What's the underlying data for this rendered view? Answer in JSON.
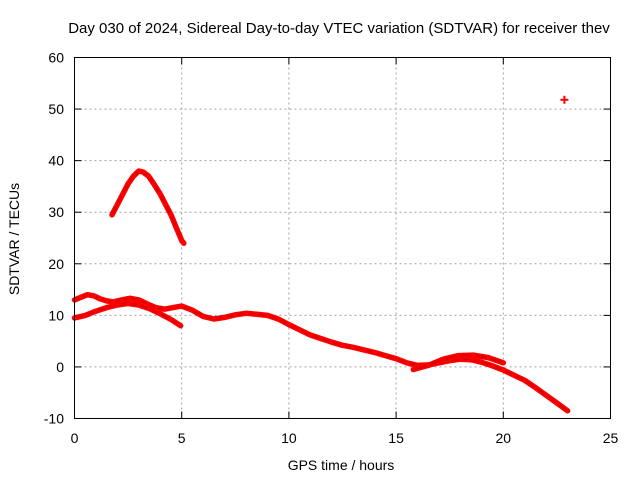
{
  "chart_data": {
    "type": "scatter",
    "title": "Day 030 of 2024, Sidereal Day-to-day VTEC variation (SDTVAR) for receiver thev",
    "xlabel": "GPS time / hours",
    "ylabel": "SDTVAR / TECUs",
    "xlim": [
      0,
      25
    ],
    "ylim": [
      -10,
      60
    ],
    "xticks": [
      0,
      5,
      10,
      15,
      20,
      25
    ],
    "yticks": [
      -10,
      0,
      10,
      20,
      30,
      40,
      50,
      60
    ],
    "xtick_labels": [
      "0",
      "5",
      "10",
      "15",
      "20",
      "25"
    ],
    "ytick_labels": [
      "-10",
      "0",
      "10",
      "20",
      "30",
      "40",
      "50",
      "60"
    ],
    "grid": true,
    "legend": "none",
    "series_color": "#ff0000",
    "series": [
      {
        "name": "upper-lobe",
        "x": [
          1.75,
          2.0,
          2.25,
          2.5,
          2.75,
          3.0,
          3.2,
          3.45,
          3.7,
          4.0,
          4.25,
          4.5,
          4.75,
          5.0,
          5.1
        ],
        "y": [
          29.5,
          31.5,
          33.5,
          35.5,
          37.0,
          38.0,
          37.8,
          37.0,
          35.5,
          33.5,
          31.5,
          29.5,
          27.0,
          24.5,
          24.0
        ]
      },
      {
        "name": "main-trace",
        "x": [
          0.0,
          0.3,
          0.6,
          0.9,
          1.2,
          1.5,
          1.8,
          2.2,
          2.6,
          3.0,
          3.4,
          3.8,
          4.2,
          4.6,
          5.0,
          5.5,
          6.0,
          6.5,
          7.0,
          7.5,
          8.0,
          8.5,
          9.0,
          9.5,
          10.0,
          10.5,
          11.0,
          11.5,
          12.0,
          12.5,
          13.0,
          13.5,
          14.0,
          14.5,
          15.0,
          15.5,
          16.0,
          16.5,
          17.0,
          17.5,
          18.0,
          18.5,
          19.0,
          19.5,
          20.0,
          20.5,
          21.0,
          21.5,
          22.0,
          22.5,
          23.0
        ],
        "y": [
          13.0,
          13.5,
          14.0,
          13.8,
          13.2,
          12.8,
          12.6,
          13.0,
          13.3,
          13.0,
          12.2,
          11.5,
          11.2,
          11.5,
          11.8,
          11.0,
          9.8,
          9.3,
          9.6,
          10.1,
          10.4,
          10.2,
          10.0,
          9.3,
          8.2,
          7.2,
          6.2,
          5.5,
          4.8,
          4.2,
          3.8,
          3.3,
          2.8,
          2.2,
          1.6,
          0.8,
          0.3,
          0.4,
          0.8,
          1.2,
          1.5,
          1.4,
          0.9,
          0.2,
          -0.6,
          -1.6,
          -2.6,
          -4.0,
          -5.5,
          -7.0,
          -8.5
        ]
      },
      {
        "name": "lower-trace",
        "x": [
          0.0,
          0.5,
          1.0,
          1.5,
          2.0,
          2.5,
          3.0,
          3.5,
          4.0,
          4.5,
          4.95
        ],
        "y": [
          9.5,
          10.0,
          10.8,
          11.5,
          12.0,
          12.3,
          12.0,
          11.3,
          10.3,
          9.2,
          8.0
        ]
      },
      {
        "name": "mid-bump",
        "x": [
          15.8,
          16.5,
          17.2,
          17.9,
          18.6,
          19.3,
          20.0
        ],
        "y": [
          -0.5,
          0.3,
          1.5,
          2.2,
          2.3,
          1.8,
          0.8
        ]
      },
      {
        "name": "outlier",
        "x": [
          22.85
        ],
        "y": [
          51.8
        ]
      }
    ]
  }
}
